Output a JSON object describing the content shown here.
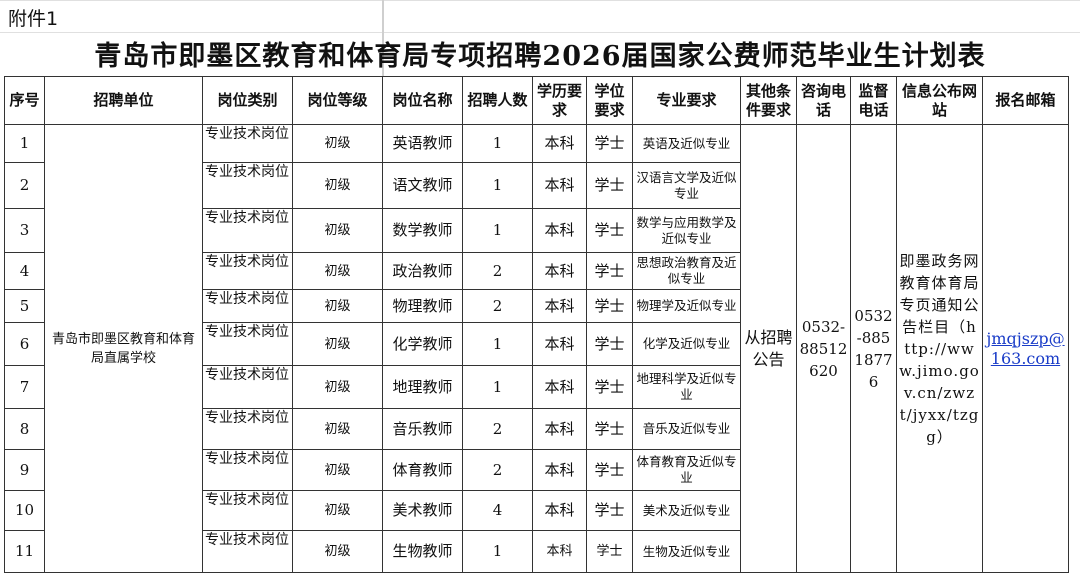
{
  "attachment_label": "附件1",
  "title": "青岛市即墨区教育和体育局专项招聘2026届国家公费师范毕业生计划表",
  "headers": [
    "序号",
    "招聘单位",
    "岗位类别",
    "岗位等级",
    "岗位名称",
    "招聘人数",
    "学历要求",
    "学位要求",
    "专业要求",
    "其他条件要求",
    "咨询电话",
    "监督电话",
    "信息公布网站",
    "报名邮箱"
  ],
  "unit": "青岛市即墨区教育和体育局直属学校",
  "other_requirements": "从招聘公告",
  "consult_phone": "0532-88512620",
  "supervise_phone": "0532-88518776",
  "info_site": "即墨政务网教育体育局专页通知公告栏目（http://www.jimo.gov.cn/zwzt/jyxx/tzgg）",
  "email": "jmqjszp@163.com",
  "rows": [
    {
      "no": "1",
      "category": "专业技术岗位",
      "level": "初级",
      "position": "英语教师",
      "count": "1",
      "education": "本科",
      "degree": "学士",
      "major": "英语及近似专业"
    },
    {
      "no": "2",
      "category": "专业技术岗位",
      "level": "初级",
      "position": "语文教师",
      "count": "1",
      "education": "本科",
      "degree": "学士",
      "major": "汉语言文学及近似专业"
    },
    {
      "no": "3",
      "category": "专业技术岗位",
      "level": "初级",
      "position": "数学教师",
      "count": "1",
      "education": "本科",
      "degree": "学士",
      "major": "数学与应用数学及近似专业"
    },
    {
      "no": "4",
      "category": "专业技术岗位",
      "level": "初级",
      "position": "政治教师",
      "count": "2",
      "education": "本科",
      "degree": "学士",
      "major": "思想政治教育及近似专业"
    },
    {
      "no": "5",
      "category": "专业技术岗位",
      "level": "初级",
      "position": "物理教师",
      "count": "2",
      "education": "本科",
      "degree": "学士",
      "major": "物理学及近似专业"
    },
    {
      "no": "6",
      "category": "专业技术岗位",
      "level": "初级",
      "position": "化学教师",
      "count": "1",
      "education": "本科",
      "degree": "学士",
      "major": "化学及近似专业"
    },
    {
      "no": "7",
      "category": "专业技术岗位",
      "level": "初级",
      "position": "地理教师",
      "count": "1",
      "education": "本科",
      "degree": "学士",
      "major": "地理科学及近似专业"
    },
    {
      "no": "8",
      "category": "专业技术岗位",
      "level": "初级",
      "position": "音乐教师",
      "count": "2",
      "education": "本科",
      "degree": "学士",
      "major": "音乐及近似专业"
    },
    {
      "no": "9",
      "category": "专业技术岗位",
      "level": "初级",
      "position": "体育教师",
      "count": "2",
      "education": "本科",
      "degree": "学士",
      "major": "体育教育及近似专业"
    },
    {
      "no": "10",
      "category": "专业技术岗位",
      "level": "初级",
      "position": "美术教师",
      "count": "4",
      "education": "本科",
      "degree": "学士",
      "major": "美术及近似专业"
    },
    {
      "no": "11",
      "category": "专业技术岗位",
      "level": "初级",
      "position": "生物教师",
      "count": "1",
      "education": "本科",
      "degree": "学士",
      "major": "生物及近似专业"
    }
  ]
}
